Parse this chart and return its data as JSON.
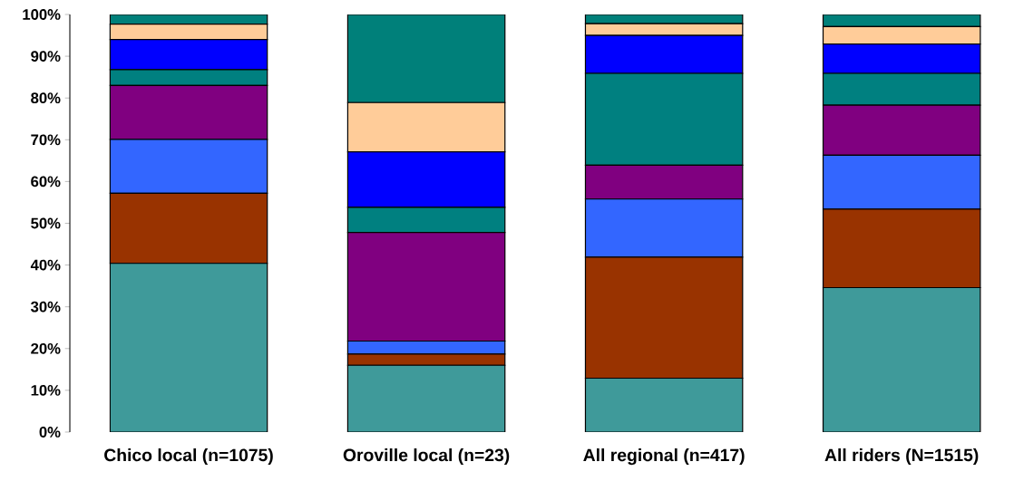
{
  "chart_data": {
    "type": "bar",
    "stacked": true,
    "categories": [
      "Chico local (n=1075)",
      "Oroville local (n=23)",
      "All regional (n=417)",
      "All riders (N=1515)"
    ],
    "series": [
      {
        "color": "#3f9a9a",
        "values": [
          40.4,
          16.0,
          12.9,
          34.6
        ]
      },
      {
        "color": "#993300",
        "values": [
          16.8,
          2.7,
          29.0,
          18.8
        ]
      },
      {
        "color": "#3366ff",
        "values": [
          12.9,
          3.1,
          13.9,
          12.9
        ]
      },
      {
        "color": "#800080",
        "values": [
          12.9,
          26.0,
          8.1,
          12.0
        ]
      },
      {
        "color": "#008080",
        "values": [
          3.8,
          6.0,
          22.0,
          7.6
        ]
      },
      {
        "color": "#0000ff",
        "values": [
          7.2,
          13.3,
          9.1,
          7.0
        ]
      },
      {
        "color": "#ffcc99",
        "values": [
          3.7,
          11.8,
          2.8,
          4.2
        ]
      },
      {
        "color": "#00807a",
        "values": [
          2.3,
          21.1,
          2.2,
          2.9
        ]
      }
    ],
    "ylim": [
      0,
      100
    ],
    "yticks": [
      {
        "value": 0,
        "label": "0%"
      },
      {
        "value": 10,
        "label": "10%"
      },
      {
        "value": 20,
        "label": "20%"
      },
      {
        "value": 30,
        "label": "30%"
      },
      {
        "value": 40,
        "label": "40%"
      },
      {
        "value": 50,
        "label": "50%"
      },
      {
        "value": 60,
        "label": "60%"
      },
      {
        "value": 70,
        "label": "70%"
      },
      {
        "value": 80,
        "label": "80%"
      },
      {
        "value": 90,
        "label": "90%"
      },
      {
        "value": 100,
        "label": "100%"
      }
    ],
    "grid": false
  }
}
